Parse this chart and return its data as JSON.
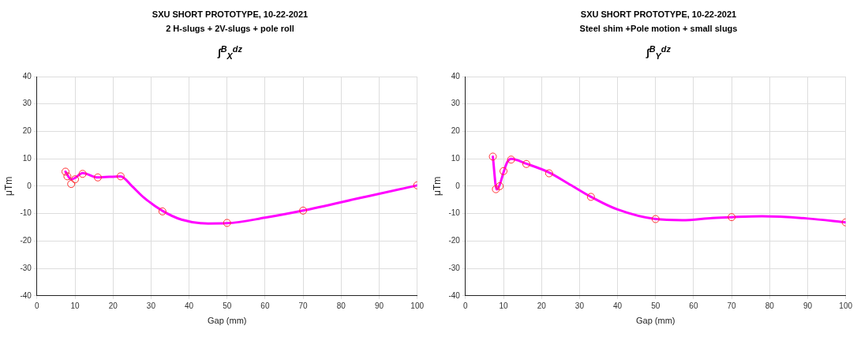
{
  "chart_data": [
    {
      "type": "line",
      "title": "SXU SHORT PROTOTYPE, 10-22-2021",
      "subtitle": "2 H-slugs + 2V-slugs + pole roll",
      "annotations": [
        "∫$^{B}$$_{X}$$^{dz}$"
      ],
      "xlabel": "Gap (mm)",
      "ylabel": "μTm",
      "xlim": [
        0,
        100
      ],
      "xticks": [
        0,
        10,
        20,
        30,
        40,
        50,
        60,
        70,
        80,
        90,
        100
      ],
      "ylim": [
        -40,
        40
      ],
      "yticks": [
        -40,
        -30,
        -20,
        -10,
        0,
        10,
        20,
        30,
        40
      ],
      "grid": true,
      "series": [
        {
          "color": "#ff00ff",
          "marker": "none",
          "x": [
            7.5,
            9,
            10,
            12,
            16,
            22,
            25,
            28,
            33,
            38,
            45,
            50,
            60,
            70,
            85,
            100
          ],
          "values": [
            5.3,
            2.5,
            3,
            4.8,
            3.2,
            3.6,
            0,
            -4,
            -9,
            -12.2,
            -13.6,
            -13.5,
            -11.5,
            -8.9,
            -4.3,
            0.3
          ]
        },
        {
          "type": "scatter",
          "color": "#ff3333",
          "marker": "circle",
          "x": [
            7.5,
            8,
            9,
            10,
            12,
            16,
            22,
            33,
            50,
            70,
            100
          ],
          "values": [
            5.3,
            3.6,
            0.8,
            2.5,
            4.5,
            3.2,
            3.6,
            -9.2,
            -13.4,
            -8.9,
            0.3
          ]
        }
      ]
    },
    {
      "type": "line",
      "title": "SXU SHORT PROTOTYPE, 10-22-2021",
      "subtitle": "Steel shim +Pole motion + small slugs",
      "annotations": [
        "∫$^{B}$$_{Y}$$^{dz}$"
      ],
      "xlabel": "Gap (mm)",
      "ylabel": "μTm",
      "xlim": [
        0,
        100
      ],
      "xticks": [
        0,
        10,
        20,
        30,
        40,
        50,
        60,
        70,
        80,
        90,
        100
      ],
      "ylim": [
        -40,
        40
      ],
      "yticks": [
        -40,
        -30,
        -20,
        -10,
        0,
        10,
        20,
        30,
        40
      ],
      "grid": true,
      "series": [
        {
          "color": "#ff00ff",
          "marker": "none",
          "x": [
            7.2,
            8.2,
            9,
            10,
            11,
            12,
            16,
            22,
            27,
            33,
            40,
            50,
            57,
            65,
            70,
            78,
            90,
            100
          ],
          "values": [
            10.8,
            -1.2,
            0.5,
            5,
            8.8,
            10,
            8.2,
            5,
            1,
            -3.9,
            -8.5,
            -12,
            -12.4,
            -11.6,
            -11.3,
            -11,
            -11.8,
            -13.2
          ]
        },
        {
          "type": "scatter",
          "color": "#ff3333",
          "marker": "circle",
          "x": [
            7.2,
            8,
            9,
            10,
            12,
            16,
            22,
            33,
            50,
            70,
            100
          ],
          "values": [
            10.8,
            -1.1,
            0,
            5.5,
            9.7,
            8.1,
            4.7,
            -3.9,
            -12,
            -11.3,
            -13.2
          ]
        }
      ]
    }
  ]
}
